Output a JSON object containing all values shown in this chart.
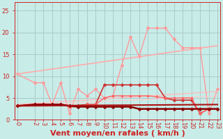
{
  "bg_color": "#c8ece8",
  "grid_color": "#aacccc",
  "xlabel": "Vent moyen/en rafales ( km/h )",
  "xlabel_color": "#cc2222",
  "xlabel_fontsize": 8,
  "ylim": [
    0,
    27
  ],
  "xlim": [
    -0.3,
    23.3
  ],
  "yticks": [
    0,
    5,
    10,
    15,
    20,
    25
  ],
  "xticks": [
    0,
    2,
    3,
    4,
    5,
    6,
    7,
    8,
    9,
    10,
    11,
    12,
    13,
    14,
    15,
    16,
    17,
    18,
    19,
    20,
    21,
    22,
    23
  ],
  "tick_color": "#cc2222",
  "tick_fontsize": 6,
  "lines": [
    {
      "x": [
        0,
        2,
        3,
        4,
        5,
        6,
        7,
        8,
        9,
        10,
        11,
        12,
        13,
        14,
        15,
        16,
        17,
        18,
        19,
        20,
        21,
        22,
        23
      ],
      "y": [
        10.5,
        8.5,
        8.5,
        3.5,
        8.5,
        1.5,
        7.0,
        5.5,
        7.0,
        5.0,
        5.5,
        12.5,
        19.0,
        14.5,
        21.0,
        21.0,
        21.0,
        18.5,
        16.5,
        16.5,
        16.5,
        1.5,
        7.0
      ],
      "color": "#ff9999",
      "lw": 1.0,
      "marker": "D",
      "ms": 2.5
    },
    {
      "x": [
        0,
        23
      ],
      "y": [
        10.5,
        17.0
      ],
      "color": "#ffaaaa",
      "lw": 1.2,
      "marker": null,
      "ms": 0
    },
    {
      "x": [
        0,
        23
      ],
      "y": [
        3.5,
        6.5
      ],
      "color": "#ffbbbb",
      "lw": 1.0,
      "marker": null,
      "ms": 0
    },
    {
      "x": [
        0,
        23
      ],
      "y": [
        3.2,
        5.5
      ],
      "color": "#ffcccc",
      "lw": 0.8,
      "marker": null,
      "ms": 0
    },
    {
      "x": [
        0,
        2,
        3,
        4,
        5,
        6,
        7,
        8,
        9,
        10,
        11,
        12,
        13,
        14,
        15,
        16,
        17,
        18,
        19,
        20,
        21,
        22,
        23
      ],
      "y": [
        3.2,
        3.5,
        3.5,
        3.5,
        3.5,
        3.2,
        3.3,
        3.5,
        3.5,
        8.0,
        8.0,
        8.0,
        8.0,
        8.0,
        8.0,
        8.0,
        5.0,
        4.5,
        4.5,
        4.5,
        1.5,
        2.5,
        2.5
      ],
      "color": "#cc3333",
      "lw": 1.2,
      "marker": "D",
      "ms": 2.5
    },
    {
      "x": [
        0,
        2,
        3,
        4,
        5,
        6,
        7,
        8,
        9,
        10,
        11,
        12,
        13,
        14,
        15,
        16,
        17,
        18,
        19,
        20,
        21,
        22,
        23
      ],
      "y": [
        3.2,
        3.5,
        3.5,
        3.5,
        3.5,
        3.0,
        3.0,
        3.5,
        3.5,
        5.0,
        5.5,
        5.5,
        5.5,
        5.5,
        5.5,
        5.3,
        5.0,
        5.0,
        5.0,
        5.0,
        1.5,
        2.5,
        2.5
      ],
      "color": "#ff6666",
      "lw": 1.0,
      "marker": "D",
      "ms": 2.0
    },
    {
      "x": [
        0,
        2,
        3,
        4,
        5,
        6,
        7,
        8,
        9,
        10,
        11,
        12,
        13,
        14,
        15,
        16,
        17,
        18,
        19,
        20,
        21,
        22,
        23
      ],
      "y": [
        3.2,
        3.5,
        3.5,
        3.5,
        3.5,
        3.2,
        3.0,
        3.0,
        3.0,
        3.0,
        3.0,
        3.0,
        3.0,
        2.5,
        2.5,
        2.5,
        2.5,
        2.5,
        2.5,
        2.5,
        2.5,
        2.5,
        2.5
      ],
      "color": "#880000",
      "lw": 1.8,
      "marker": "D",
      "ms": 2.5
    },
    {
      "x": [
        0,
        23
      ],
      "y": [
        3.2,
        3.5
      ],
      "color": "#aa1111",
      "lw": 1.5,
      "marker": null,
      "ms": 0
    }
  ]
}
